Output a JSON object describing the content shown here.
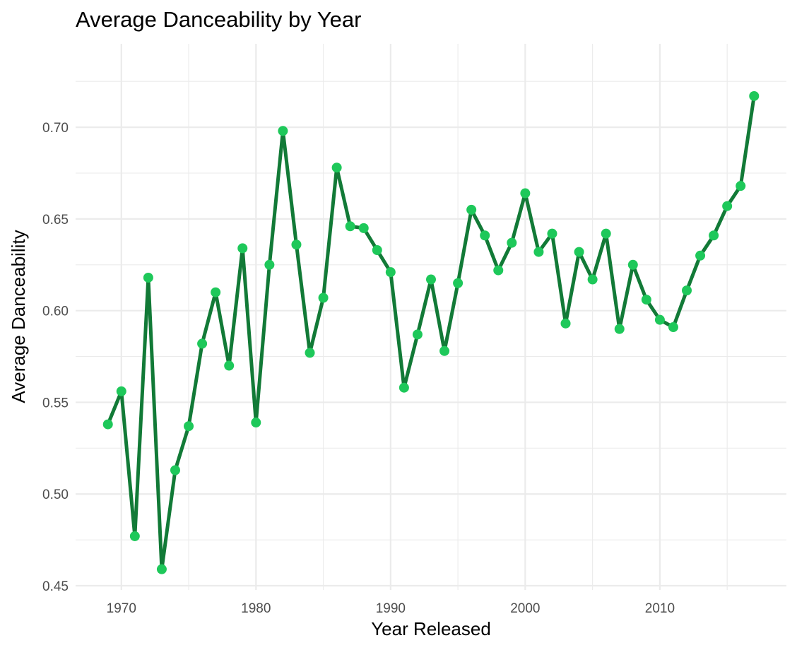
{
  "chart_data": {
    "type": "line",
    "title": "Average Danceability by Year",
    "xlabel": "Year Released",
    "ylabel": "Average Danceability",
    "xlim": [
      1966.6,
      2019.4
    ],
    "ylim": [
      0.4477,
      0.7455
    ],
    "x_ticks": [
      1970,
      1980,
      1990,
      2000,
      2010
    ],
    "x_minor_ticks": [
      1975,
      1985,
      1995,
      2005,
      2015
    ],
    "y_ticks": [
      0.45,
      0.5,
      0.55,
      0.6,
      0.65,
      0.7
    ],
    "y_tick_labels": [
      "0.45",
      "0.50",
      "0.55",
      "0.60",
      "0.65",
      "0.70"
    ],
    "y_minor_ticks": [
      0.475,
      0.525,
      0.575,
      0.625,
      0.675,
      0.725
    ],
    "grid": true,
    "legend": "none",
    "colors": {
      "line": "#127a37",
      "point": "#1ec85a",
      "grid": "#ebebeb"
    },
    "series": [
      {
        "x": [
          1969,
          1970,
          1971,
          1972,
          1973,
          1974,
          1975,
          1976,
          1977,
          1978,
          1979,
          1980,
          1981,
          1982,
          1983,
          1984,
          1985,
          1986,
          1987,
          1988,
          1989,
          1990,
          1991,
          1992,
          1993,
          1994,
          1995,
          1996,
          1997,
          1998,
          1999,
          2000,
          2001,
          2002,
          2003,
          2004,
          2005,
          2006,
          2007,
          2008,
          2009,
          2010,
          2011,
          2012,
          2013,
          2014,
          2015,
          2016,
          2017
        ],
        "y": [
          0.538,
          0.556,
          0.477,
          0.618,
          0.459,
          0.513,
          0.537,
          0.582,
          0.61,
          0.57,
          0.634,
          0.539,
          0.625,
          0.698,
          0.636,
          0.577,
          0.607,
          0.678,
          0.646,
          0.645,
          0.633,
          0.621,
          0.558,
          0.587,
          0.617,
          0.578,
          0.615,
          0.655,
          0.641,
          0.622,
          0.637,
          0.664,
          0.632,
          0.642,
          0.593,
          0.632,
          0.617,
          0.642,
          0.59,
          0.625,
          0.606,
          0.595,
          0.591,
          0.611,
          0.63,
          0.641,
          0.657,
          0.668,
          0.717
        ]
      }
    ]
  }
}
